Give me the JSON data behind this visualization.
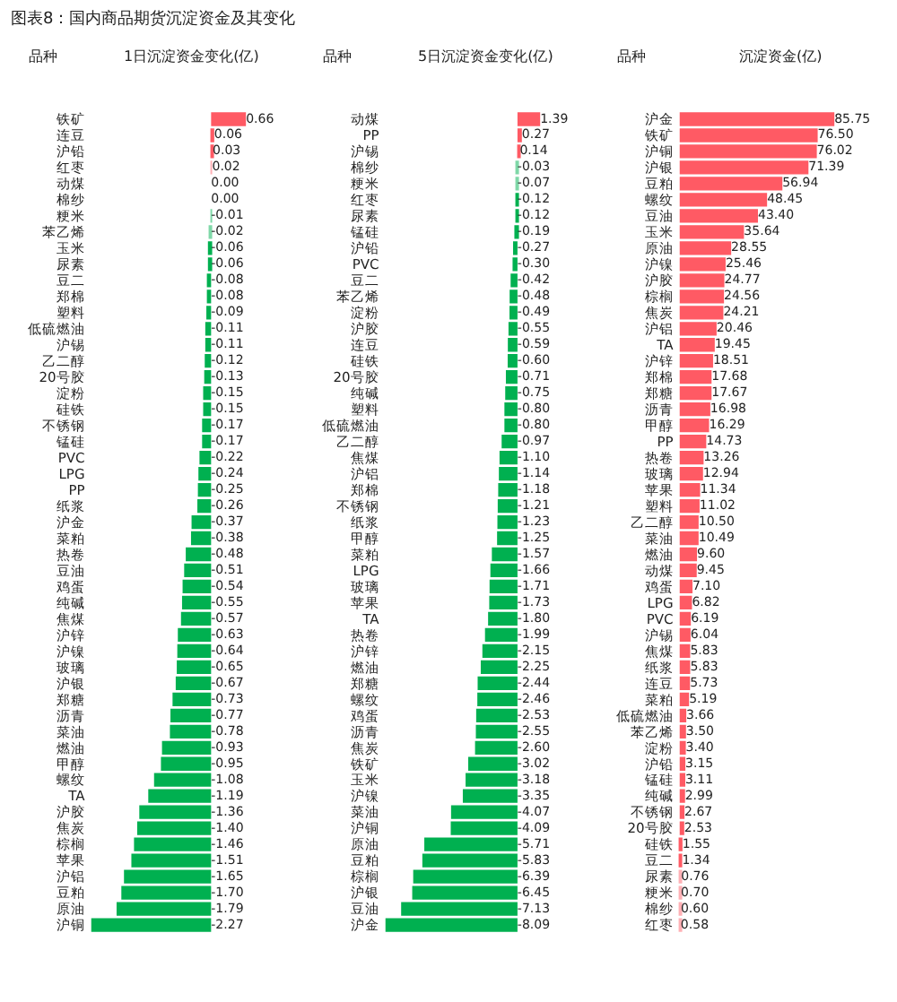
{
  "chart_data": [
    {
      "type": "bar",
      "orientation": "horizontal",
      "title": "1日沉淀资金变化(亿)",
      "ylabel": "品种",
      "annotations": [
        "图表8：国内商品期货沉淀资金及其变化"
      ],
      "tick_labels": "y",
      "value_labels": [
        "0.66",
        "0.06",
        "0.03",
        "0.02",
        "0.00",
        "0.00",
        "-0.01",
        "-0.02",
        "-0.06",
        "-0.06",
        "-0.08",
        "-0.08",
        "-0.09",
        "-0.11",
        "-0.11",
        "-0.12",
        "-0.13",
        "-0.15",
        "-0.15",
        "-0.17",
        "-0.17",
        "-0.22",
        "-0.24",
        "-0.25",
        "-0.26",
        "-0.37",
        "-0.38",
        "-0.48",
        "-0.51",
        "-0.54",
        "-0.55",
        "-0.57",
        "-0.63",
        "-0.64",
        "-0.65",
        "-0.67",
        "-0.73",
        "-0.77",
        "-0.78",
        "-0.93",
        "-0.95",
        "-1.08",
        "-1.19",
        "-1.36",
        "-1.40",
        "-1.46",
        "-1.51",
        "-1.65",
        "-1.70",
        "-1.79",
        "-2.27"
      ],
      "categories": [
        "铁矿",
        "连豆",
        "沪铅",
        "红枣",
        "动煤",
        "棉纱",
        "粳米",
        "苯乙烯",
        "玉米",
        "尿素",
        "豆二",
        "郑棉",
        "塑料",
        "低硫燃油",
        "沪锡",
        "乙二醇",
        "20号胶",
        "淀粉",
        "硅铁",
        "不锈钢",
        "锰硅",
        "PVC",
        "LPG",
        "PP",
        "纸浆",
        "沪金",
        "菜粕",
        "热卷",
        "豆油",
        "鸡蛋",
        "纯碱",
        "焦煤",
        "沪锌",
        "沪镍",
        "玻璃",
        "沪银",
        "郑糖",
        "沥青",
        "菜油",
        "燃油",
        "甲醇",
        "螺纹",
        "TA",
        "沪胶",
        "焦炭",
        "棕榈",
        "苹果",
        "沪铝",
        "豆粕",
        "原油",
        "沪铜"
      ],
      "values": [
        0.66,
        0.06,
        0.03,
        0.02,
        0.0,
        0.0,
        -0.01,
        -0.02,
        -0.06,
        -0.06,
        -0.08,
        -0.08,
        -0.09,
        -0.11,
        -0.11,
        -0.12,
        -0.13,
        -0.15,
        -0.15,
        -0.17,
        -0.17,
        -0.22,
        -0.24,
        -0.25,
        -0.26,
        -0.37,
        -0.38,
        -0.48,
        -0.51,
        -0.54,
        -0.55,
        -0.57,
        -0.63,
        -0.64,
        -0.65,
        -0.67,
        -0.73,
        -0.77,
        -0.78,
        -0.93,
        -0.95,
        -1.08,
        -1.19,
        -1.36,
        -1.4,
        -1.46,
        -1.51,
        -1.65,
        -1.7,
        -1.79,
        -2.27
      ],
      "colors": [
        "#ff5a64",
        "#ff5a64",
        "#ff5a64",
        "#ffb0b5",
        "#ffffff",
        "#ffffff",
        "#7fd8a8",
        "#7fd8a8",
        "#00b050",
        "#00b050",
        "#00b050",
        "#00b050",
        "#00b050",
        "#00b050",
        "#00b050",
        "#00b050",
        "#00b050",
        "#00b050",
        "#00b050",
        "#00b050",
        "#00b050",
        "#00b050",
        "#00b050",
        "#00b050",
        "#00b050",
        "#00b050",
        "#00b050",
        "#00b050",
        "#00b050",
        "#00b050",
        "#00b050",
        "#00b050",
        "#00b050",
        "#00b050",
        "#00b050",
        "#00b050",
        "#00b050",
        "#00b050",
        "#00b050",
        "#00b050",
        "#00b050",
        "#00b050",
        "#00b050",
        "#00b050",
        "#00b050",
        "#00b050",
        "#00b050",
        "#00b050",
        "#00b050",
        "#00b050",
        "#00b050"
      ]
    },
    {
      "type": "bar",
      "orientation": "horizontal",
      "title": "5日沉淀资金变化(亿)",
      "ylabel": "品种",
      "tick_labels": "y",
      "value_labels": [
        "1.39",
        "0.27",
        "0.14",
        "-0.03",
        "-0.07",
        "-0.12",
        "-0.12",
        "-0.19",
        "-0.27",
        "-0.30",
        "-0.42",
        "-0.48",
        "-0.49",
        "-0.55",
        "-0.59",
        "-0.60",
        "-0.71",
        "-0.75",
        "-0.80",
        "-0.80",
        "-0.97",
        "-1.10",
        "-1.14",
        "-1.18",
        "-1.21",
        "-1.23",
        "-1.25",
        "-1.57",
        "-1.66",
        "-1.71",
        "-1.73",
        "-1.80",
        "-1.99",
        "-2.15",
        "-2.25",
        "-2.44",
        "-2.46",
        "-2.53",
        "-2.55",
        "-2.60",
        "-3.02",
        "-3.18",
        "-3.35",
        "-4.07",
        "-4.09",
        "-5.71",
        "-5.83",
        "-6.39",
        "-6.45",
        "-7.13",
        "-8.09"
      ],
      "categories": [
        "动煤",
        "PP",
        "沪锡",
        "棉纱",
        "粳米",
        "红枣",
        "尿素",
        "锰硅",
        "沪铅",
        "PVC",
        "豆二",
        "苯乙烯",
        "淀粉",
        "沪胶",
        "连豆",
        "硅铁",
        "20号胶",
        "纯碱",
        "塑料",
        "低硫燃油",
        "乙二醇",
        "焦煤",
        "沪铝",
        "郑棉",
        "不锈钢",
        "纸浆",
        "甲醇",
        "菜粕",
        "LPG",
        "玻璃",
        "苹果",
        "TA",
        "热卷",
        "沪锌",
        "燃油",
        "郑糖",
        "螺纹",
        "鸡蛋",
        "沥青",
        "焦炭",
        "铁矿",
        "玉米",
        "沪镍",
        "菜油",
        "沪铜",
        "原油",
        "豆粕",
        "棕榈",
        "沪银",
        "豆油",
        "沪金"
      ],
      "values": [
        1.39,
        0.27,
        0.14,
        -0.03,
        -0.07,
        -0.12,
        -0.12,
        -0.19,
        -0.27,
        -0.3,
        -0.42,
        -0.48,
        -0.49,
        -0.55,
        -0.59,
        -0.6,
        -0.71,
        -0.75,
        -0.8,
        -0.8,
        -0.97,
        -1.1,
        -1.14,
        -1.18,
        -1.21,
        -1.23,
        -1.25,
        -1.57,
        -1.66,
        -1.71,
        -1.73,
        -1.8,
        -1.99,
        -2.15,
        -2.25,
        -2.44,
        -2.46,
        -2.53,
        -2.55,
        -2.6,
        -3.02,
        -3.18,
        -3.35,
        -4.07,
        -4.09,
        -5.71,
        -5.83,
        -6.39,
        -6.45,
        -7.13,
        -8.09
      ],
      "colors": [
        "#ff5a64",
        "#ff5a64",
        "#ff5a64",
        "#7fd8a8",
        "#7fd8a8",
        "#00b050",
        "#00b050",
        "#00b050",
        "#00b050",
        "#00b050",
        "#00b050",
        "#00b050",
        "#00b050",
        "#00b050",
        "#00b050",
        "#00b050",
        "#00b050",
        "#00b050",
        "#00b050",
        "#00b050",
        "#00b050",
        "#00b050",
        "#00b050",
        "#00b050",
        "#00b050",
        "#00b050",
        "#00b050",
        "#00b050",
        "#00b050",
        "#00b050",
        "#00b050",
        "#00b050",
        "#00b050",
        "#00b050",
        "#00b050",
        "#00b050",
        "#00b050",
        "#00b050",
        "#00b050",
        "#00b050",
        "#00b050",
        "#00b050",
        "#00b050",
        "#00b050",
        "#00b050",
        "#00b050",
        "#00b050",
        "#00b050",
        "#00b050",
        "#00b050",
        "#00b050"
      ]
    },
    {
      "type": "bar",
      "orientation": "horizontal",
      "title": "沉淀资金(亿)",
      "ylabel": "品种",
      "tick_labels": "y",
      "value_labels": [
        "85.75",
        "76.50",
        "76.02",
        "71.39",
        "56.94",
        "48.45",
        "43.40",
        "35.64",
        "28.55",
        "25.46",
        "24.77",
        "24.56",
        "24.21",
        "20.46",
        "19.45",
        "18.51",
        "17.68",
        "17.67",
        "16.98",
        "16.29",
        "14.73",
        "13.26",
        "12.94",
        "11.34",
        "11.02",
        "10.50",
        "10.49",
        "9.60",
        "9.45",
        "7.10",
        "6.82",
        "6.19",
        "6.04",
        "5.83",
        "5.83",
        "5.73",
        "5.19",
        "3.66",
        "3.50",
        "3.40",
        "3.15",
        "3.11",
        "2.99",
        "2.67",
        "2.53",
        "1.55",
        "1.34",
        "0.76",
        "0.70",
        "0.60",
        "0.58"
      ],
      "categories": [
        "沪金",
        "铁矿",
        "沪铜",
        "沪银",
        "豆粕",
        "螺纹",
        "豆油",
        "玉米",
        "原油",
        "沪镍",
        "沪胶",
        "棕榈",
        "焦炭",
        "沪铝",
        "TA",
        "沪锌",
        "郑棉",
        "郑糖",
        "沥青",
        "甲醇",
        "PP",
        "热卷",
        "玻璃",
        "苹果",
        "塑料",
        "乙二醇",
        "菜油",
        "燃油",
        "动煤",
        "鸡蛋",
        "LPG",
        "PVC",
        "沪锡",
        "焦煤",
        "纸浆",
        "连豆",
        "菜粕",
        "低硫燃油",
        "苯乙烯",
        "淀粉",
        "沪铅",
        "锰硅",
        "纯碱",
        "不锈钢",
        "20号胶",
        "硅铁",
        "豆二",
        "尿素",
        "粳米",
        "棉纱",
        "红枣"
      ],
      "values": [
        85.75,
        76.5,
        76.02,
        71.39,
        56.94,
        48.45,
        43.4,
        35.64,
        28.55,
        25.46,
        24.77,
        24.56,
        24.21,
        20.46,
        19.45,
        18.51,
        17.68,
        17.67,
        16.98,
        16.29,
        14.73,
        13.26,
        12.94,
        11.34,
        11.02,
        10.5,
        10.49,
        9.6,
        9.45,
        7.1,
        6.82,
        6.19,
        6.04,
        5.83,
        5.83,
        5.73,
        5.19,
        3.66,
        3.5,
        3.4,
        3.15,
        3.11,
        2.99,
        2.67,
        2.53,
        1.55,
        1.34,
        0.76,
        0.7,
        0.6,
        0.58
      ],
      "colors": [
        "#ff5a64",
        "#ff5a64",
        "#ff5a64",
        "#ff5a64",
        "#ff5a64",
        "#ff5a64",
        "#ff5a64",
        "#ff5a64",
        "#ff5a64",
        "#ff5a64",
        "#ff5a64",
        "#ff5a64",
        "#ff5a64",
        "#ff5a64",
        "#ff5a64",
        "#ff5a64",
        "#ff5a64",
        "#ff5a64",
        "#ff5a64",
        "#ff5a64",
        "#ff5a64",
        "#ff5a64",
        "#ff5a64",
        "#ff5a64",
        "#ff5a64",
        "#ff5a64",
        "#ff5a64",
        "#ff5a64",
        "#ff5a64",
        "#ff5a64",
        "#ff5a64",
        "#ff5a64",
        "#ff5a64",
        "#ff5a64",
        "#ff5a64",
        "#ff5a64",
        "#ff5a64",
        "#ff5a64",
        "#ff5a64",
        "#ff5a64",
        "#ff5a64",
        "#ff5a64",
        "#ff5a64",
        "#ff5a64",
        "#ff5a64",
        "#ff5a64",
        "#ff5a64",
        "#ffb0b5",
        "#ffb0b5",
        "#ffb0b5",
        "#ffb0b5"
      ]
    }
  ]
}
